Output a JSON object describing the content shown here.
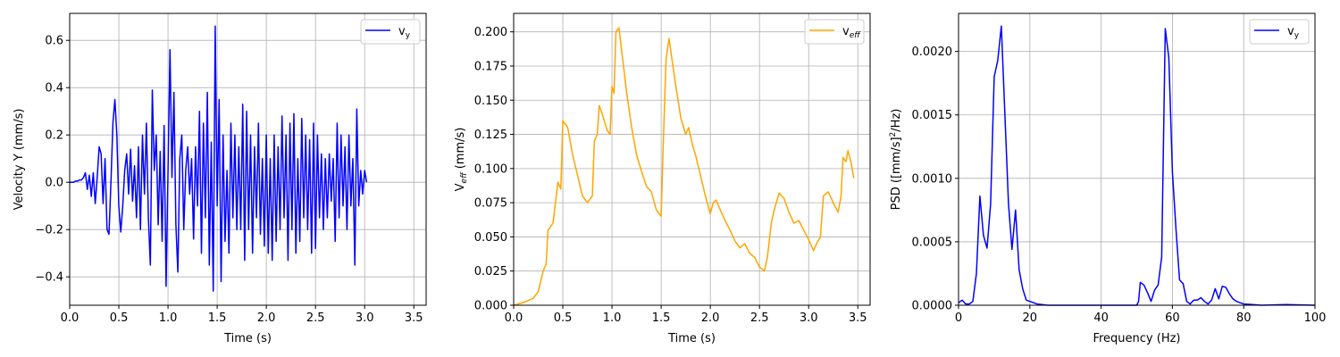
{
  "chart_data": [
    {
      "type": "line",
      "xlabel": "Time (s)",
      "ylabel": "Velocity Y (mm/s)",
      "xlim": [
        0,
        3.625
      ],
      "ylim": [
        -0.52,
        0.714
      ],
      "xticks": [
        "0.0",
        "0.5",
        "1.0",
        "1.5",
        "2.0",
        "2.5",
        "3.0",
        "3.5"
      ],
      "xtick_values": [
        0,
        0.5,
        1,
        1.5,
        2,
        2.5,
        3,
        3.5
      ],
      "yticks": [
        "−0.4",
        "−0.2",
        "0.0",
        "0.2",
        "0.4",
        "0.6"
      ],
      "ytick_values": [
        -0.4,
        -0.2,
        0,
        0.2,
        0.4,
        0.6
      ],
      "grid": true,
      "legend": {
        "position": "top-right",
        "label_base": "v",
        "label_sub": "y"
      },
      "series": [
        {
          "name": "v_y",
          "color": "#0000ff",
          "t0": 0,
          "dt": 0.02,
          "values": [
            0,
            0,
            0,
            0.005,
            0.005,
            0.01,
            0.01,
            0.02,
            0.04,
            -0.03,
            0.03,
            -0.06,
            0.04,
            -0.09,
            0.02,
            0.15,
            0.12,
            -0.09,
            0.1,
            -0.2,
            -0.22,
            0.0,
            0.25,
            0.35,
            0.2,
            -0.1,
            -0.21,
            -0.1,
            0.05,
            0.12,
            -0.05,
            0.14,
            -0.08,
            0.07,
            -0.15,
            0.15,
            -0.2,
            0.2,
            -0.05,
            0.25,
            -0.15,
            -0.35,
            0.39,
            0.05,
            0.2,
            -0.18,
            0.13,
            -0.25,
            0.24,
            -0.44,
            0.05,
            0.56,
            0.02,
            0.38,
            -0.18,
            -0.38,
            0.1,
            0.2,
            -0.2,
            0.05,
            0.15,
            -0.05,
            0.1,
            -0.24,
            0.15,
            -0.1,
            0.3,
            -0.3,
            0.25,
            -0.15,
            0.38,
            -0.35,
            0.17,
            -0.46,
            0.66,
            -0.1,
            0.35,
            -0.42,
            0.2,
            -0.25,
            0.05,
            -0.3,
            0.25,
            -0.15,
            0.2,
            -0.2,
            0.15,
            -0.2,
            0.33,
            -0.33,
            0.3,
            -0.2,
            0.2,
            -0.3,
            0.15,
            -0.15,
            0.25,
            -0.22,
            0.1,
            -0.27,
            0.2,
            -0.3,
            0.1,
            -0.33,
            0.2,
            -0.25,
            0.15,
            -0.2,
            0.28,
            -0.15,
            0.2,
            -0.33,
            0.25,
            -0.2,
            0.29,
            -0.3,
            0.1,
            -0.25,
            0.27,
            -0.15,
            0.2,
            -0.2,
            0.18,
            -0.3,
            0.25,
            -0.28,
            0.2,
            -0.15,
            0.12,
            -0.2,
            0.1,
            -0.15,
            0.12,
            -0.08,
            0.1,
            -0.25,
            0.25,
            -0.15,
            0.2,
            -0.1,
            0.15,
            -0.2,
            0.2,
            -0.1,
            0.1,
            -0.35,
            0.31,
            -0.1,
            0.05,
            -0.05,
            0.05,
            0.0
          ]
        }
      ]
    },
    {
      "type": "line",
      "xlabel": "Time (s)",
      "ylabel_base": "V",
      "ylabel_sub": "eff",
      "ylabel_unit": " (mm/s)",
      "xlim": [
        0,
        3.625
      ],
      "ylim": [
        0,
        0.2135
      ],
      "xticks": [
        "0.0",
        "0.5",
        "1.0",
        "1.5",
        "2.0",
        "2.5",
        "3.0",
        "3.5"
      ],
      "xtick_values": [
        0,
        0.5,
        1,
        1.5,
        2,
        2.5,
        3,
        3.5
      ],
      "yticks": [
        "0.000",
        "0.025",
        "0.050",
        "0.075",
        "0.100",
        "0.125",
        "0.150",
        "0.175",
        "0.200"
      ],
      "ytick_values": [
        0,
        0.025,
        0.05,
        0.075,
        0.1,
        0.125,
        0.15,
        0.175,
        0.2
      ],
      "grid": true,
      "legend": {
        "position": "top-right",
        "label_base": "v",
        "label_sub": "eff"
      },
      "series": [
        {
          "name": "v_eff",
          "color": "#ffa500",
          "x": [
            0,
            0.1,
            0.2,
            0.25,
            0.3,
            0.33,
            0.35,
            0.4,
            0.45,
            0.48,
            0.5,
            0.55,
            0.6,
            0.65,
            0.7,
            0.75,
            0.8,
            0.82,
            0.85,
            0.87,
            0.9,
            0.95,
            0.98,
            1.0,
            1.02,
            1.04,
            1.07,
            1.1,
            1.15,
            1.2,
            1.25,
            1.3,
            1.35,
            1.4,
            1.45,
            1.5,
            1.52,
            1.55,
            1.58,
            1.62,
            1.65,
            1.7,
            1.75,
            1.78,
            1.82,
            1.85,
            1.9,
            1.95,
            2.0,
            2.03,
            2.06,
            2.1,
            2.15,
            2.2,
            2.25,
            2.3,
            2.35,
            2.4,
            2.45,
            2.5,
            2.55,
            2.58,
            2.62,
            2.65,
            2.7,
            2.75,
            2.8,
            2.85,
            2.9,
            2.95,
            3.0,
            3.05,
            3.08,
            3.12,
            3.15,
            3.2,
            3.25,
            3.3,
            3.33,
            3.35,
            3.38,
            3.4,
            3.43,
            3.46
          ],
          "y": [
            0,
            0.002,
            0.005,
            0.01,
            0.025,
            0.03,
            0.055,
            0.06,
            0.09,
            0.085,
            0.135,
            0.13,
            0.11,
            0.095,
            0.08,
            0.075,
            0.08,
            0.12,
            0.125,
            0.146,
            0.14,
            0.128,
            0.125,
            0.16,
            0.155,
            0.2,
            0.203,
            0.185,
            0.155,
            0.13,
            0.11,
            0.098,
            0.087,
            0.083,
            0.07,
            0.065,
            0.115,
            0.18,
            0.195,
            0.175,
            0.16,
            0.137,
            0.125,
            0.13,
            0.117,
            0.11,
            0.095,
            0.08,
            0.067,
            0.075,
            0.077,
            0.07,
            0.062,
            0.055,
            0.047,
            0.042,
            0.045,
            0.038,
            0.035,
            0.028,
            0.025,
            0.035,
            0.06,
            0.07,
            0.082,
            0.078,
            0.068,
            0.06,
            0.062,
            0.055,
            0.048,
            0.04,
            0.045,
            0.05,
            0.08,
            0.083,
            0.075,
            0.068,
            0.08,
            0.108,
            0.105,
            0.113,
            0.105,
            0.093
          ]
        }
      ]
    },
    {
      "type": "line",
      "xlabel": "Frequency (Hz)",
      "ylabel_base": "PSD ([mm/s]",
      "ylabel_sup": "2",
      "ylabel_unit": "/Hz)",
      "xlim": [
        0,
        100
      ],
      "ylim": [
        0,
        0.0023
      ],
      "xticks": [
        "0",
        "20",
        "40",
        "60",
        "80",
        "100"
      ],
      "xtick_values": [
        0,
        20,
        40,
        60,
        80,
        100
      ],
      "yticks": [
        "0.0000",
        "0.0005",
        "0.0010",
        "0.0015",
        "0.0020"
      ],
      "ytick_values": [
        0,
        0.0005,
        0.001,
        0.0015,
        0.002
      ],
      "grid": true,
      "legend": {
        "position": "top-right",
        "label_base": "v",
        "label_sub": "y"
      },
      "series": [
        {
          "name": "v_y",
          "color": "#0000ff",
          "x": [
            0,
            1,
            2,
            3,
            4,
            5,
            6,
            7,
            8,
            9,
            10,
            11,
            12,
            13,
            14,
            15,
            16,
            17,
            18,
            19,
            20,
            22,
            25,
            50,
            50.5,
            51,
            52,
            53,
            54,
            55,
            56,
            57,
            58,
            59,
            60,
            61,
            62,
            63,
            64,
            65,
            66,
            67,
            68,
            69,
            70,
            71,
            72,
            73,
            74,
            75,
            76,
            77,
            78,
            79,
            80,
            85,
            92,
            100
          ],
          "y": [
            2e-05,
            4e-05,
            1e-05,
            1e-05,
            3e-05,
            0.00025,
            0.00086,
            0.00055,
            0.00045,
            0.0008,
            0.0018,
            0.00193,
            0.0022,
            0.0015,
            0.0008,
            0.00044,
            0.00075,
            0.00028,
            0.00013,
            4e-05,
            3e-05,
            1e-05,
            0,
            0,
            3e-05,
            0.00018,
            0.00016,
            0.0001,
            3e-05,
            0.00012,
            0.00016,
            0.00038,
            0.00218,
            0.00195,
            0.00105,
            0.0006,
            0.0002,
            0.00017,
            3e-05,
            1e-05,
            4e-05,
            4e-05,
            6e-05,
            3e-05,
            1e-05,
            4e-05,
            0.00013,
            5e-05,
            0.00015,
            0.00014,
            9e-05,
            5e-05,
            3e-05,
            2e-05,
            1e-05,
            0,
            5e-06,
            0
          ]
        }
      ]
    }
  ]
}
